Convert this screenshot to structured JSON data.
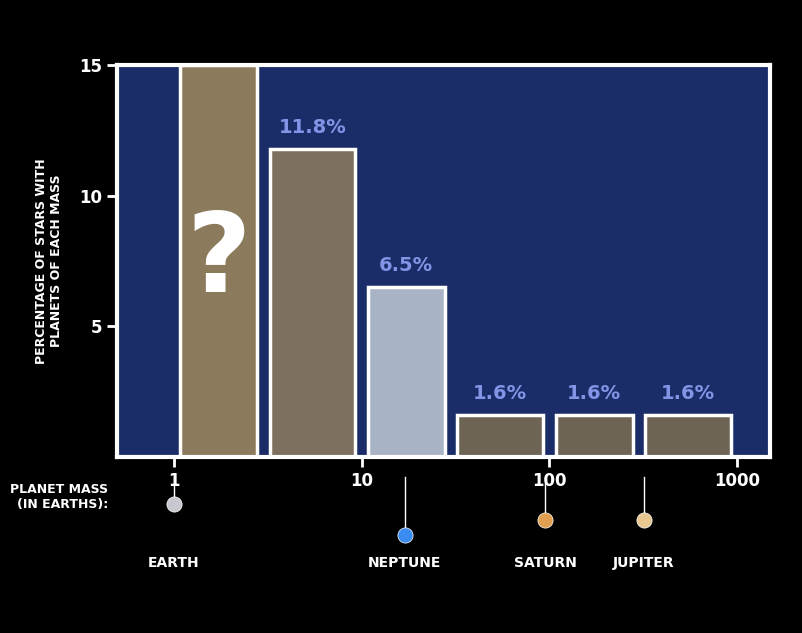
{
  "chart_data": {
    "type": "bar",
    "y_label": "PERCENTAGE OF STARS WITH\nPLANETS OF EACH MASS",
    "x_label": "PLANET MASS\n(IN EARTHS):",
    "bins": [
      1,
      3,
      10,
      30,
      100,
      300,
      1000
    ],
    "values": [
      null,
      11.8,
      6.5,
      1.6,
      1.6,
      1.6
    ],
    "value_labels": [
      "?",
      "11.8%",
      "6.5%",
      "1.6%",
      "1.6%",
      "1.6%"
    ],
    "data_labels": true,
    "colors": [
      "#8c7a5c",
      "#7d705e",
      "#a9b3c6",
      "#6e6454",
      "#6e6454",
      "#6e6454"
    ],
    "log": "x",
    "xlim": [
      0.5,
      1500
    ],
    "xticks": [
      1,
      10,
      100,
      1000
    ],
    "ylim": [
      0,
      15
    ],
    "yticks": [
      5,
      10,
      15
    ],
    "grid": false,
    "annotations": [
      {
        "text": "EARTH",
        "x": 1
      },
      {
        "text": "NEPTUNE",
        "x": 17
      },
      {
        "text": "SATURN",
        "x": 95
      },
      {
        "text": "JUPITER",
        "x": 318
      }
    ]
  }
}
